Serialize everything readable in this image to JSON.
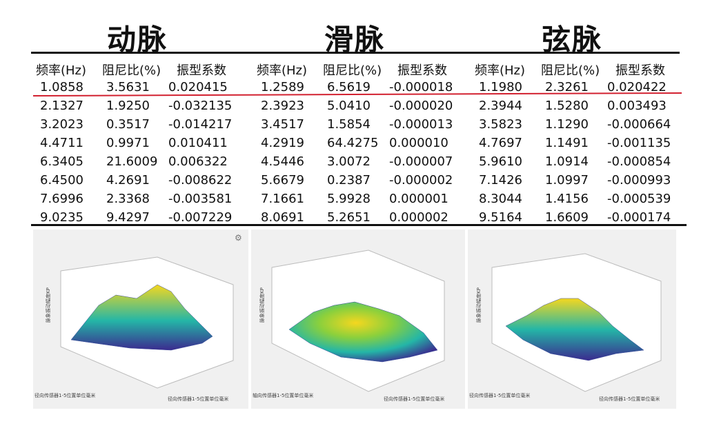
{
  "titles": [
    "动脉",
    "滑脉",
    "弦脉"
  ],
  "headers": [
    "频率(Hz)",
    "阻尼比(%)",
    "振型系数"
  ],
  "tables": [
    {
      "rows": [
        [
          "1.0858",
          "3.5631",
          "0.020415"
        ],
        [
          "2.1327",
          "1.9250",
          "-0.032135"
        ],
        [
          "3.2023",
          "0.3517",
          "-0.014217"
        ],
        [
          "4.4711",
          "0.9971",
          "0.010411"
        ],
        [
          "6.3405",
          "21.6009",
          "0.006322"
        ],
        [
          "6.4500",
          "4.2691",
          "-0.008622"
        ],
        [
          "7.6996",
          "2.3368",
          "-0.003581"
        ],
        [
          "9.0235",
          "9.4297",
          "-0.007229"
        ]
      ]
    },
    {
      "rows": [
        [
          "1.2589",
          "6.5619",
          "-0.000018"
        ],
        [
          "2.3923",
          "5.0410",
          "-0.000020"
        ],
        [
          "3.4517",
          "1.5854",
          "-0.000013"
        ],
        [
          "4.2919",
          "64.4275",
          "0.000010"
        ],
        [
          "4.5446",
          "3.0072",
          "-0.000007"
        ],
        [
          "5.6679",
          "0.2387",
          "-0.000002"
        ],
        [
          "7.1661",
          "5.9928",
          "0.000001"
        ],
        [
          "8.0691",
          "5.2651",
          "0.000002"
        ]
      ]
    },
    {
      "rows": [
        [
          "1.1980",
          "2.3261",
          "0.020422"
        ],
        [
          "2.3944",
          "1.5280",
          "0.003493"
        ],
        [
          "3.5823",
          "1.1290",
          "-0.000664"
        ],
        [
          "4.7697",
          "1.1491",
          "-0.001135"
        ],
        [
          "5.9610",
          "1.0914",
          "-0.000854"
        ],
        [
          "7.1426",
          "1.0997",
          "-0.000993"
        ],
        [
          "8.3044",
          "1.4156",
          "-0.000539"
        ],
        [
          "9.5164",
          "1.6609",
          "-0.000174"
        ]
      ]
    }
  ],
  "plots": [
    {
      "ylabel": "径向传感器1-5位置单位毫米",
      "xlabel": "径向传感器1-5位置单位毫米",
      "zlabel": "脉象振动幅度KP"
    },
    {
      "ylabel": "轴向传感器1-5位置单位毫米",
      "xlabel": "径向传感器1-5位置单位毫米",
      "zlabel": "脉象振动幅度KP"
    },
    {
      "ylabel": "径向传感器1-5位置单位毫米",
      "xlabel": "径向传感器1-5位置单位毫米",
      "zlabel": "脉象振动幅度KP"
    }
  ],
  "colors": {
    "rule": "#111111",
    "highlight": "#d2202f",
    "surface_low": "#3b2a8f",
    "surface_mid": "#24b6a7",
    "surface_high": "#f5d71f"
  }
}
